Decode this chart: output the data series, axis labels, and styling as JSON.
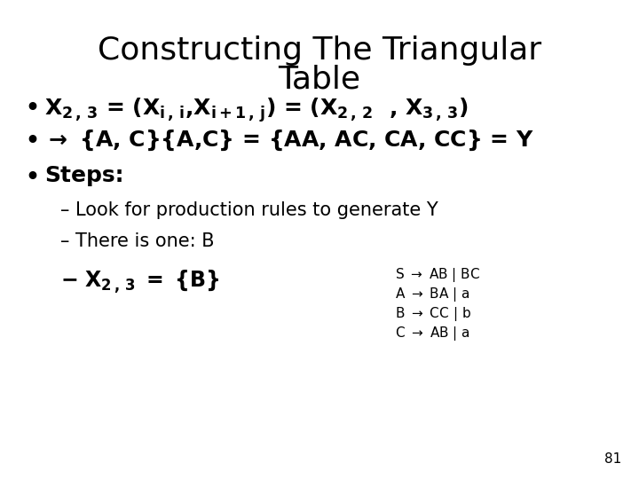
{
  "title_line1": "Constructing The Triangular",
  "title_line2": "Table",
  "background_color": "#ffffff",
  "text_color": "#000000",
  "page_number": "81",
  "title_fontsize": 26,
  "body_fontsize": 18,
  "sub_fontsize": 15,
  "grammar_fontsize": 11
}
